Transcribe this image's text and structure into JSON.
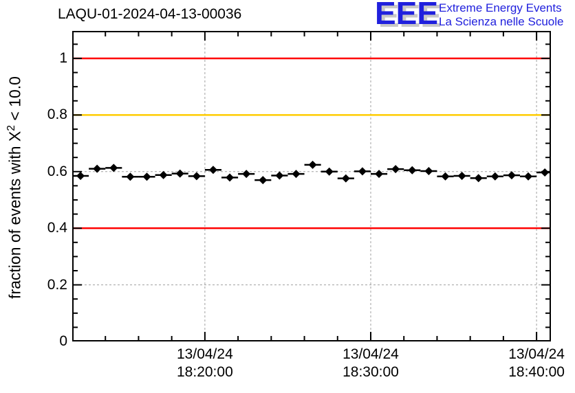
{
  "header": {
    "logo": {
      "acronym": "EEE",
      "line1": "Extreme Energy Events",
      "line2": "La Scienza nelle Scuole",
      "color": "#2020dd",
      "shadow_color": "#c8c8c8"
    }
  },
  "chart_data": {
    "type": "scatter",
    "title": "LAQU-01-2024-04-13-00036",
    "ylabel": {
      "prefix": "fraction of events with X",
      "sup": "2",
      "suffix": " < 10.0",
      "full_text": "fraction of events with X2 < 10.0"
    },
    "xlabel": "",
    "ylim": [
      0,
      1.097
    ],
    "x_time_range": [
      "18:12:00",
      "18:40:52"
    ],
    "x_date": "13/04/24",
    "x_major_ticks": [
      {
        "date": "13/04/24",
        "time": "18:20:00"
      },
      {
        "date": "13/04/24",
        "time": "18:30:00"
      },
      {
        "date": "13/04/24",
        "time": "18:40:00"
      }
    ],
    "x_minor_step_seconds": 120,
    "y_major_ticks": [
      0,
      0.2,
      0.4,
      0.6,
      0.8,
      1
    ],
    "y_tick_labels": [
      "0",
      "0.2",
      "0.4",
      "0.6",
      "0.8",
      "1"
    ],
    "y_minor_step": 0.05,
    "grid": {
      "show": true,
      "color": "#a0a0a0",
      "dash": "3 3"
    },
    "frame_color": "#000000",
    "reference_lines": [
      {
        "y": 1.0,
        "color": "#ff0000"
      },
      {
        "y": 0.8,
        "color": "#ffcc00"
      },
      {
        "y": 0.4,
        "color": "#ff0000"
      }
    ],
    "legend_position": "none",
    "series": [
      {
        "name": "fraction of events with chi2 < 10",
        "marker": "diamond",
        "color": "#000000",
        "x_error_seconds": 30,
        "points": [
          {
            "t": "18:12:30",
            "v": 0.585
          },
          {
            "t": "18:13:30",
            "v": 0.61
          },
          {
            "t": "18:14:30",
            "v": 0.613
          },
          {
            "t": "18:15:30",
            "v": 0.582
          },
          {
            "t": "18:16:30",
            "v": 0.582
          },
          {
            "t": "18:17:30",
            "v": 0.588
          },
          {
            "t": "18:18:30",
            "v": 0.593
          },
          {
            "t": "18:19:30",
            "v": 0.584
          },
          {
            "t": "18:20:30",
            "v": 0.606
          },
          {
            "t": "18:21:30",
            "v": 0.579
          },
          {
            "t": "18:22:30",
            "v": 0.592
          },
          {
            "t": "18:23:30",
            "v": 0.57
          },
          {
            "t": "18:24:30",
            "v": 0.586
          },
          {
            "t": "18:25:30",
            "v": 0.592
          },
          {
            "t": "18:26:30",
            "v": 0.624
          },
          {
            "t": "18:27:30",
            "v": 0.6
          },
          {
            "t": "18:28:30",
            "v": 0.576
          },
          {
            "t": "18:29:30",
            "v": 0.601
          },
          {
            "t": "18:30:30",
            "v": 0.592
          },
          {
            "t": "18:31:30",
            "v": 0.609
          },
          {
            "t": "18:32:30",
            "v": 0.605
          },
          {
            "t": "18:33:30",
            "v": 0.602
          },
          {
            "t": "18:34:30",
            "v": 0.583
          },
          {
            "t": "18:35:30",
            "v": 0.585
          },
          {
            "t": "18:36:30",
            "v": 0.577
          },
          {
            "t": "18:37:30",
            "v": 0.583
          },
          {
            "t": "18:38:30",
            "v": 0.587
          },
          {
            "t": "18:39:30",
            "v": 0.583
          },
          {
            "t": "18:40:30",
            "v": 0.597
          }
        ]
      }
    ]
  }
}
